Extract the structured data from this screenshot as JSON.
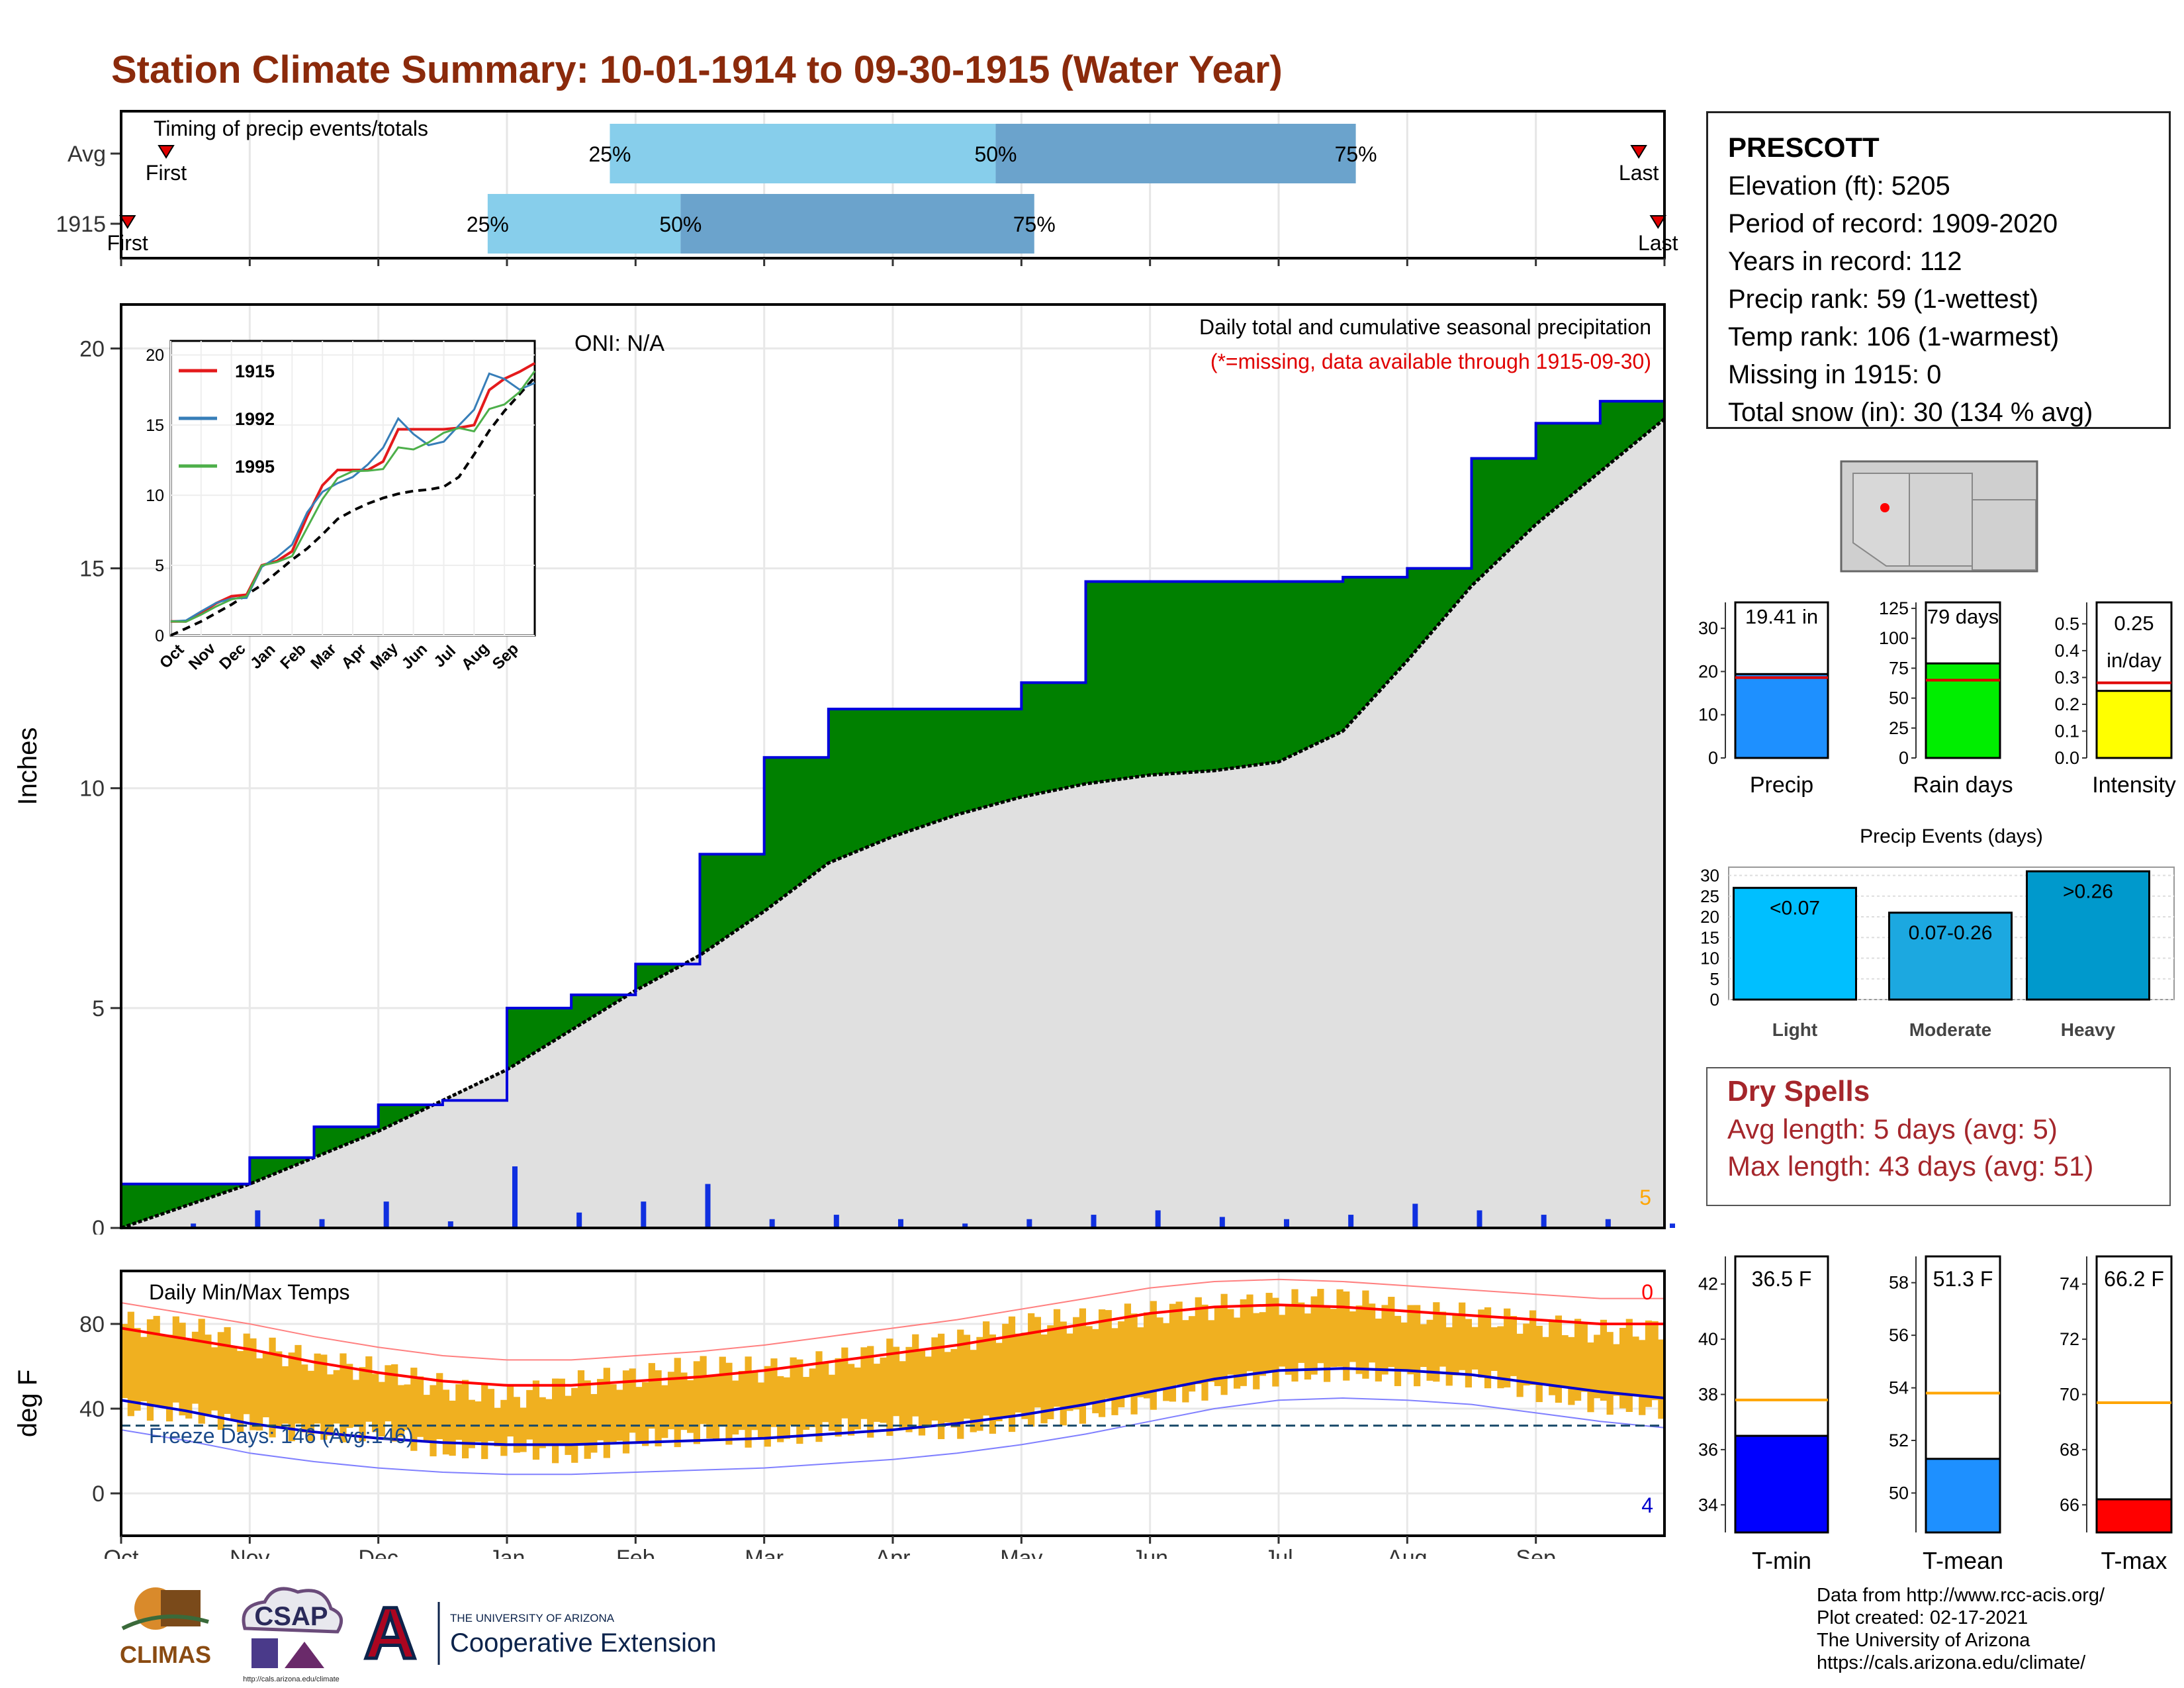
{
  "title": "Station Climate Summary: 10-01-1914 to 09-30-1915 (Water Year)",
  "timing": {
    "label": "Timing of precip events/totals",
    "rows": [
      {
        "name": "Avg",
        "first_label": "First",
        "last_label": "Last",
        "first_month": 0.35,
        "last_month": 11.8,
        "q25": 3.8,
        "q50": 6.8,
        "q75": 9.6,
        "q25_label": "25%",
        "q50_label": "50%",
        "q75_label": "75%"
      },
      {
        "name": "1915",
        "first_label": "First",
        "last_label": "Last",
        "first_month": 0.05,
        "last_month": 11.95,
        "q25": 2.85,
        "q50": 4.35,
        "q75": 7.1,
        "q25_label": "25%",
        "q50_label": "50%",
        "q75_label": "75%"
      }
    ]
  },
  "months": [
    "Oct",
    "Nov",
    "Dec",
    "Jan",
    "Feb",
    "Mar",
    "Apr",
    "May",
    "Jun",
    "Jul",
    "Aug",
    "Sep"
  ],
  "precip": {
    "ylabel": "Inches",
    "yticks": [
      "0",
      "5",
      "10",
      "15",
      "20"
    ],
    "ylim": [
      0,
      21
    ],
    "note1": "Daily total and cumulative seasonal precipitation",
    "note2": "(*=missing, data available through 1915-09-30)",
    "oni": "ONI: N/A",
    "corner_count": "5",
    "inset": {
      "yticks": [
        "0",
        "5",
        "10",
        "15",
        "20"
      ],
      "legend": [
        "1915",
        "1992",
        "1995"
      ],
      "colors": [
        "#e41a1c",
        "#377eb8",
        "#4daf4a"
      ]
    }
  },
  "chart_data": [
    {
      "type": "area",
      "title": "Daily total and cumulative seasonal precipitation",
      "ylabel": "Inches",
      "ylim": [
        0,
        21
      ],
      "x_months": [
        0,
        0.5,
        1,
        1.5,
        2,
        2.5,
        3,
        3.5,
        4,
        4.5,
        5,
        5.5,
        6,
        6.5,
        7,
        7.5,
        8,
        8.5,
        9,
        9.5,
        10,
        10.5,
        11,
        11.5,
        12
      ],
      "series": [
        {
          "name": "1915",
          "values": [
            1.0,
            1.0,
            1.6,
            2.3,
            2.8,
            2.9,
            5.0,
            5.3,
            6.0,
            8.5,
            10.7,
            11.8,
            11.8,
            11.8,
            12.4,
            14.7,
            14.7,
            14.7,
            14.7,
            14.8,
            15.0,
            17.5,
            18.3,
            18.8,
            19.41
          ]
        },
        {
          "name": "Avg",
          "values": [
            0.0,
            0.5,
            1.0,
            1.6,
            2.2,
            2.9,
            3.6,
            4.5,
            5.4,
            6.2,
            7.2,
            8.3,
            8.9,
            9.4,
            9.8,
            10.1,
            10.3,
            10.4,
            10.6,
            11.3,
            12.9,
            14.6,
            16.0,
            17.2,
            18.4
          ]
        }
      ],
      "daily_events_inches": [
        0.0,
        0.1,
        0.4,
        0.2,
        0.6,
        0.15,
        1.4,
        0.35,
        0.6,
        1.0,
        0.2,
        0.3,
        0.2,
        0.1,
        0.2,
        0.3,
        0.4,
        0.25,
        0.2,
        0.3,
        0.55,
        0.4,
        0.3,
        0.2,
        0.1
      ]
    },
    {
      "type": "line",
      "title": "Daily Min/Max Temps",
      "ylabel": "deg F",
      "ylim": [
        -20,
        105
      ],
      "yticks": [
        0,
        40,
        80
      ],
      "x_months": [
        0,
        0.5,
        1,
        1.5,
        2,
        2.5,
        3,
        3.5,
        4,
        4.5,
        5,
        5.5,
        6,
        6.5,
        7,
        7.5,
        8,
        8.5,
        9,
        9.5,
        10,
        10.5,
        11,
        11.5,
        12
      ],
      "series": [
        {
          "name": "Tmax avg",
          "values": [
            78,
            73,
            68,
            62,
            57,
            53,
            51,
            51,
            53,
            55,
            58,
            62,
            66,
            70,
            75,
            80,
            85,
            88,
            89,
            88,
            86,
            84,
            82,
            80,
            80
          ]
        },
        {
          "name": "Tmin avg",
          "values": [
            44,
            39,
            33,
            29,
            26,
            24,
            23,
            23,
            24,
            25,
            26,
            28,
            30,
            33,
            37,
            42,
            48,
            54,
            58,
            59,
            58,
            56,
            52,
            48,
            45
          ]
        },
        {
          "name": "Tmax observed",
          "values": [
            80,
            78,
            70,
            62,
            58,
            50,
            45,
            52,
            55,
            60,
            58,
            62,
            68,
            72,
            80,
            82,
            85,
            88,
            90,
            92,
            85,
            84,
            80,
            76,
            78
          ]
        },
        {
          "name": "Tmin observed",
          "values": [
            40,
            38,
            32,
            28,
            30,
            20,
            22,
            18,
            25,
            28,
            26,
            30,
            32,
            30,
            35,
            38,
            44,
            50,
            56,
            58,
            55,
            55,
            48,
            42,
            40
          ]
        }
      ],
      "freeze_line": 32
    },
    {
      "type": "bar",
      "categories": [
        "Precip",
        "Rain days",
        "Intensity"
      ],
      "values": [
        19.41,
        79,
        0.25
      ],
      "averages": [
        18.6,
        65,
        0.28
      ]
    },
    {
      "type": "bar",
      "title": "Precip Events (days)",
      "categories": [
        "Light",
        "Moderate",
        "Heavy"
      ],
      "values": [
        27,
        21,
        31
      ],
      "ylim": [
        0,
        32
      ]
    },
    {
      "type": "bar",
      "categories": [
        "T-min",
        "T-mean",
        "T-max"
      ],
      "values": [
        36.5,
        51.3,
        66.2
      ],
      "averages": [
        37.8,
        53.8,
        69.7
      ]
    }
  ],
  "temp": {
    "label": "Daily Min/Max Temps",
    "ylabel": "deg F",
    "yticks": [
      "0",
      "40",
      "80"
    ],
    "freeze_text": "Freeze Days: 146 (Avg:146)",
    "top_count": "0",
    "bottom_count": "4"
  },
  "station": {
    "name": "PRESCOTT",
    "lines": [
      "Elevation (ft): 5205",
      "Period of record: 1909-2020",
      "Years in record: 112",
      "Precip rank: 59 (1-wettest)",
      "Temp rank: 106 (1-warmest)",
      "Missing in 1915: 0",
      "Total snow (in): 30 (134 % avg)"
    ]
  },
  "mini_bars": [
    {
      "label": "Precip",
      "value_label": "19.41 in",
      "value": 19.41,
      "avg": 18.6,
      "ymax": 36,
      "yticks": [
        0,
        10,
        20,
        30
      ],
      "color": "#1e90ff",
      "avg_color": "#e00000"
    },
    {
      "label": "Rain days",
      "value_label": "79 days",
      "value": 79,
      "avg": 65,
      "ymax": 130,
      "yticks": [
        0,
        25,
        50,
        75,
        100,
        125
      ],
      "color": "#00ee00",
      "avg_color": "#e00000"
    },
    {
      "label": "Intensity",
      "value_label": "0.25 in/day",
      "value": 0.25,
      "avg": 0.28,
      "ymax": 0.58,
      "yticks": [
        0.0,
        0.1,
        0.2,
        0.3,
        0.4,
        0.5
      ],
      "color": "#ffff00",
      "avg_color": "#e00000"
    }
  ],
  "events": {
    "title": "Precip Events (days)",
    "bars": [
      {
        "label": "Light",
        "range": "<0.07",
        "value": 27,
        "color": "#00bfff"
      },
      {
        "label": "Moderate",
        "range": "0.07-0.26",
        "value": 21,
        "color": "#1ca8e0"
      },
      {
        "label": "Heavy",
        "range": ">0.26",
        "value": 31,
        "color": "#0099cc"
      }
    ],
    "yticks": [
      0,
      5,
      10,
      15,
      20,
      25,
      30
    ]
  },
  "dry_spells": {
    "title": "Dry Spells",
    "avg": "Avg length: 5 days (avg: 5)",
    "max": "Max length: 43 days (avg: 51)"
  },
  "temp_bars": [
    {
      "label": "T-min",
      "value_label": "36.5 F",
      "value": 36.5,
      "avg": 37.8,
      "ymin": 33,
      "ymax": 43,
      "yticks": [
        34,
        36,
        38,
        40,
        42
      ],
      "color": "#0000ff",
      "avg_color": "#ffa500"
    },
    {
      "label": "T-mean",
      "value_label": "51.3 F",
      "value": 51.3,
      "avg": 53.8,
      "ymin": 48.5,
      "ymax": 59,
      "yticks": [
        50,
        52,
        54,
        56,
        58
      ],
      "color": "#1e90ff",
      "avg_color": "#ffa500"
    },
    {
      "label": "T-max",
      "value_label": "66.2 F",
      "value": 66.2,
      "avg": 69.7,
      "ymin": 65,
      "ymax": 75,
      "yticks": [
        66,
        68,
        70,
        72,
        74
      ],
      "color": "#ff0000",
      "avg_color": "#ffa500"
    }
  ],
  "footer": {
    "line1": "Data from http://www.rcc-acis.org/",
    "line2": "Plot created: 02-17-2021",
    "line3": "The University of Arizona",
    "line4": "https://cals.arizona.edu/climate/",
    "logo_climas": "CLIMAS",
    "logo_csap": "CSAP",
    "logo_csap_url": "http://cals.arizona.edu/climate",
    "logo_ua_small": "THE UNIVERSITY OF ARIZONA",
    "logo_ua_big": "Cooperative Extension",
    "logo_ua_letter": "A"
  },
  "colors": {
    "title": "#8b2a0b",
    "precip_fill": "#008000",
    "precip_line": "#0000dd",
    "avg_fill": "#e0e0e0",
    "bar_light": "#87ceeb",
    "bar_dark": "#6ba3cc",
    "tmax": "#ff0000",
    "tmin": "#0000cc",
    "temp_bars": "#f0b020"
  }
}
